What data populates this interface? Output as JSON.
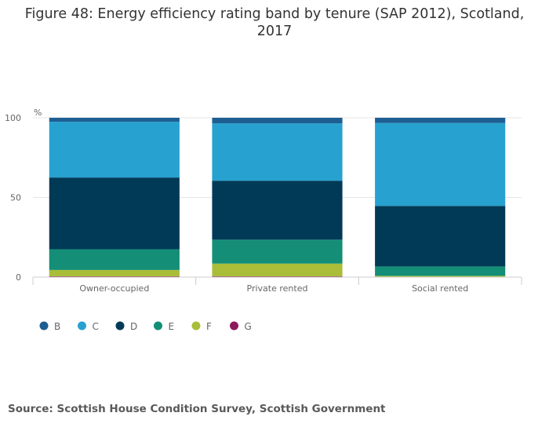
{
  "title": "Figure 48: Energy efficiency rating band by tenure (SAP 2012), Scotland, 2017",
  "source": "Source: Scottish House Condition Survey, Scottish Government",
  "chart_data": {
    "type": "bar",
    "stacked": true,
    "title": "Figure 48: Energy efficiency rating band by tenure (SAP 2012), Scotland, 2017",
    "xlabel": "",
    "ylabel": "%",
    "ylim": [
      0,
      100
    ],
    "yticks": [
      0,
      50,
      100
    ],
    "grid": true,
    "legend_position": "bottom-left",
    "categories": [
      "Owner-occupied",
      "Private rented",
      "Social rented"
    ],
    "series": [
      {
        "name": "G",
        "color": "#8b1a5c",
        "values": [
          0.5,
          0.5,
          0.1
        ]
      },
      {
        "name": "F",
        "color": "#a9bd38",
        "values": [
          4,
          8,
          0.7
        ]
      },
      {
        "name": "E",
        "color": "#148e76",
        "values": [
          13,
          15,
          5.9
        ]
      },
      {
        "name": "D",
        "color": "#003a57",
        "values": [
          45,
          37,
          38
        ]
      },
      {
        "name": "C",
        "color": "#27a1cf",
        "values": [
          35,
          36,
          52
        ]
      },
      {
        "name": "B",
        "color": "#1e5f93",
        "values": [
          2.5,
          3.5,
          3.3
        ]
      }
    ],
    "legend_order": [
      "B",
      "C",
      "D",
      "E",
      "F",
      "G"
    ]
  }
}
